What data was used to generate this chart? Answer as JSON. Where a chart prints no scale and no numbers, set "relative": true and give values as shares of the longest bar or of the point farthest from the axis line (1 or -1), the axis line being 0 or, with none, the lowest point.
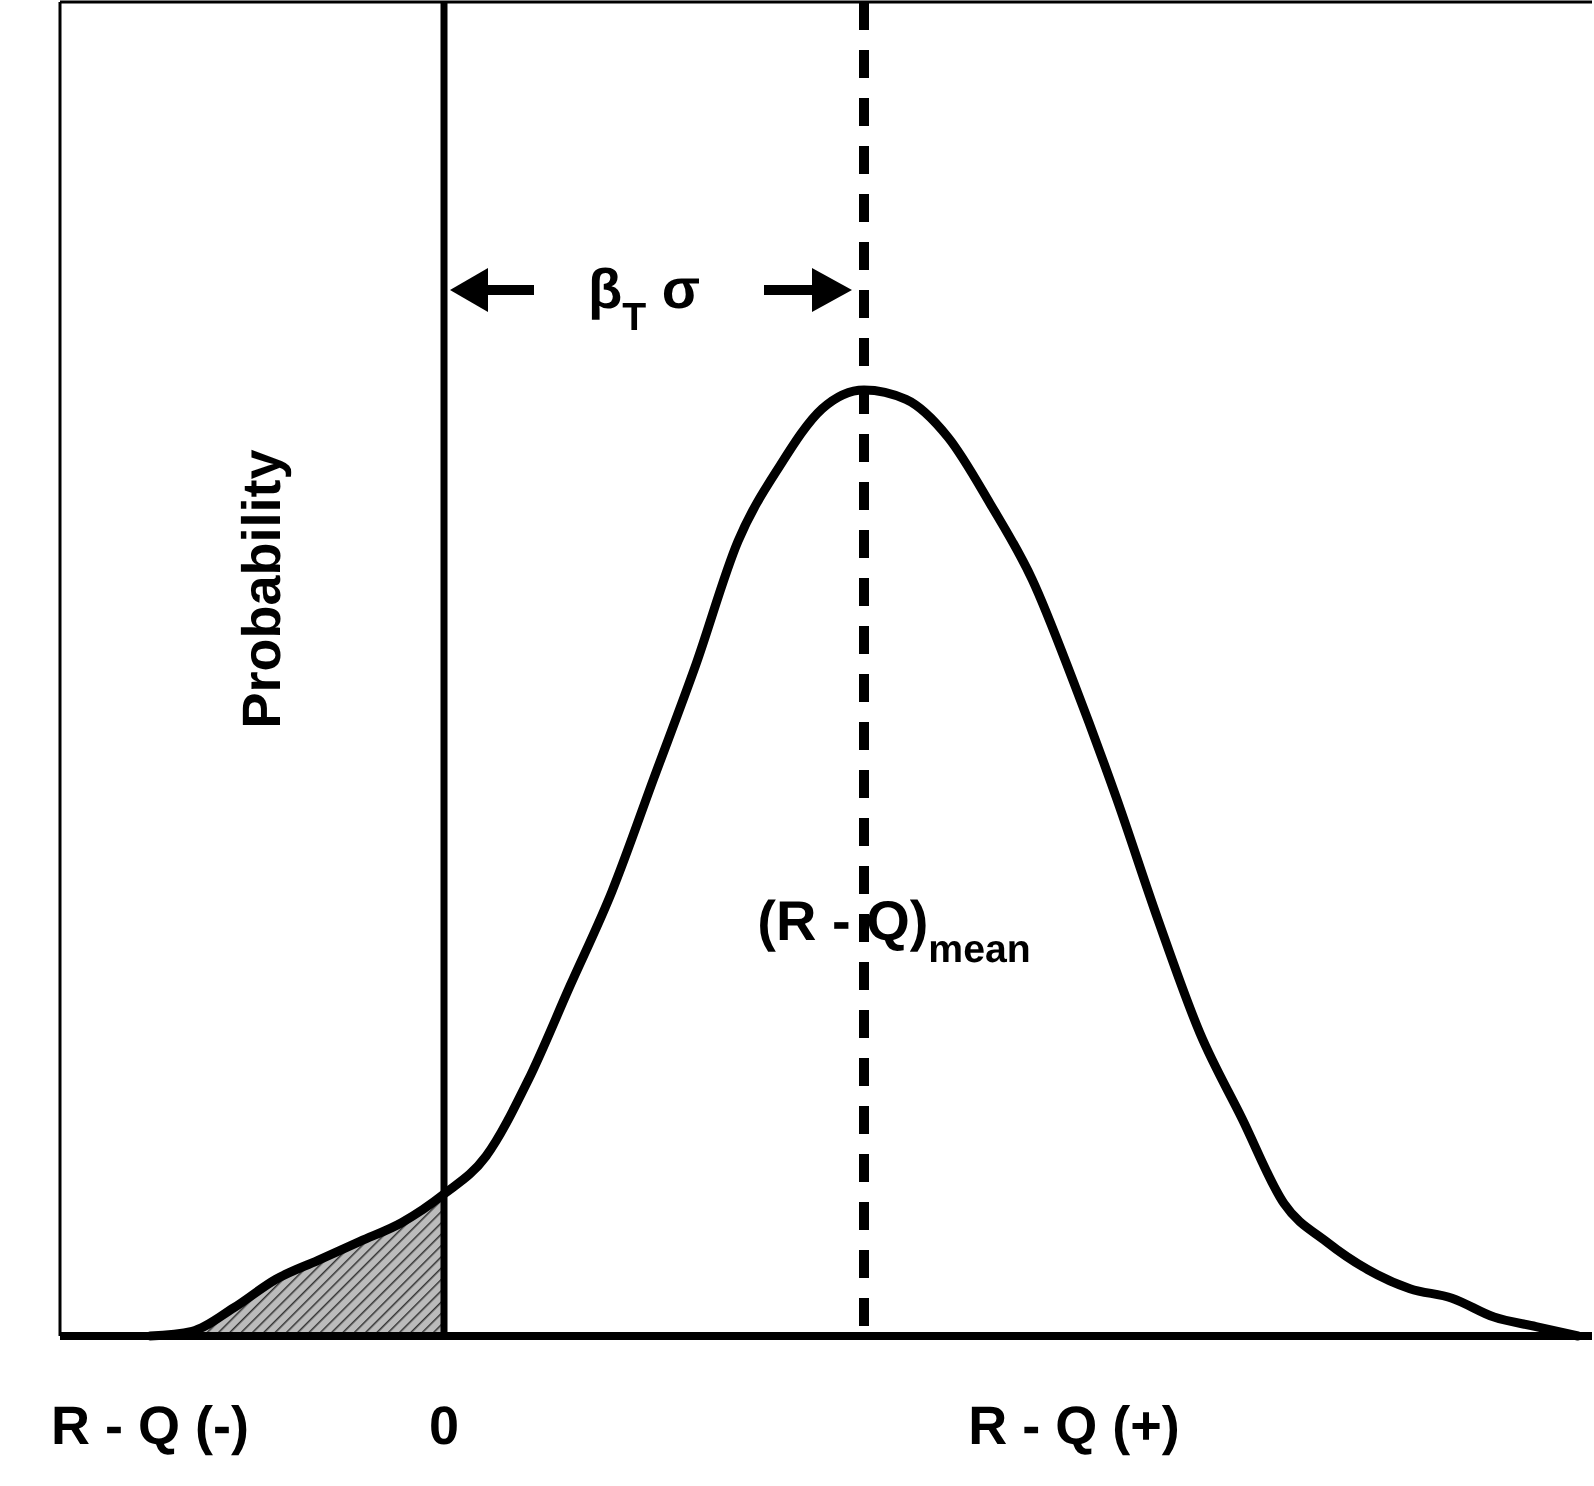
{
  "chart_data": {
    "type": "line",
    "relative": true,
    "ylabel": "Probability",
    "categories": [
      "R - Q (-)",
      null,
      null,
      null,
      null,
      null,
      null,
      "0",
      null,
      null,
      null,
      null,
      null,
      null,
      null,
      null,
      null,
      null,
      null,
      null,
      null,
      null,
      "R - Q (+)",
      null,
      null,
      null,
      null,
      null,
      null,
      null,
      null,
      null,
      null,
      null,
      null
    ],
    "values": [
      0,
      0.005,
      0.03,
      0.06,
      0.08,
      0.1,
      0.12,
      0.15,
      0.19,
      0.27,
      0.37,
      0.47,
      0.59,
      0.71,
      0.84,
      0.92,
      0.98,
      1,
      0.99,
      0.95,
      0.88,
      0.8,
      0.69,
      0.57,
      0.44,
      0.32,
      0.23,
      0.14,
      0.1,
      0.07,
      0.05,
      0.04,
      0.02,
      0.01,
      0
    ],
    "color": "#000000",
    "line_style": "solid",
    "marker": "none",
    "ref_lines": [
      {
        "axis": "x",
        "value": "0",
        "line_style": "solid"
      }
    ],
    "annotations": [
      "β$_{T}$ σ",
      "(R - Q)$_{mean}$"
    ]
  }
}
